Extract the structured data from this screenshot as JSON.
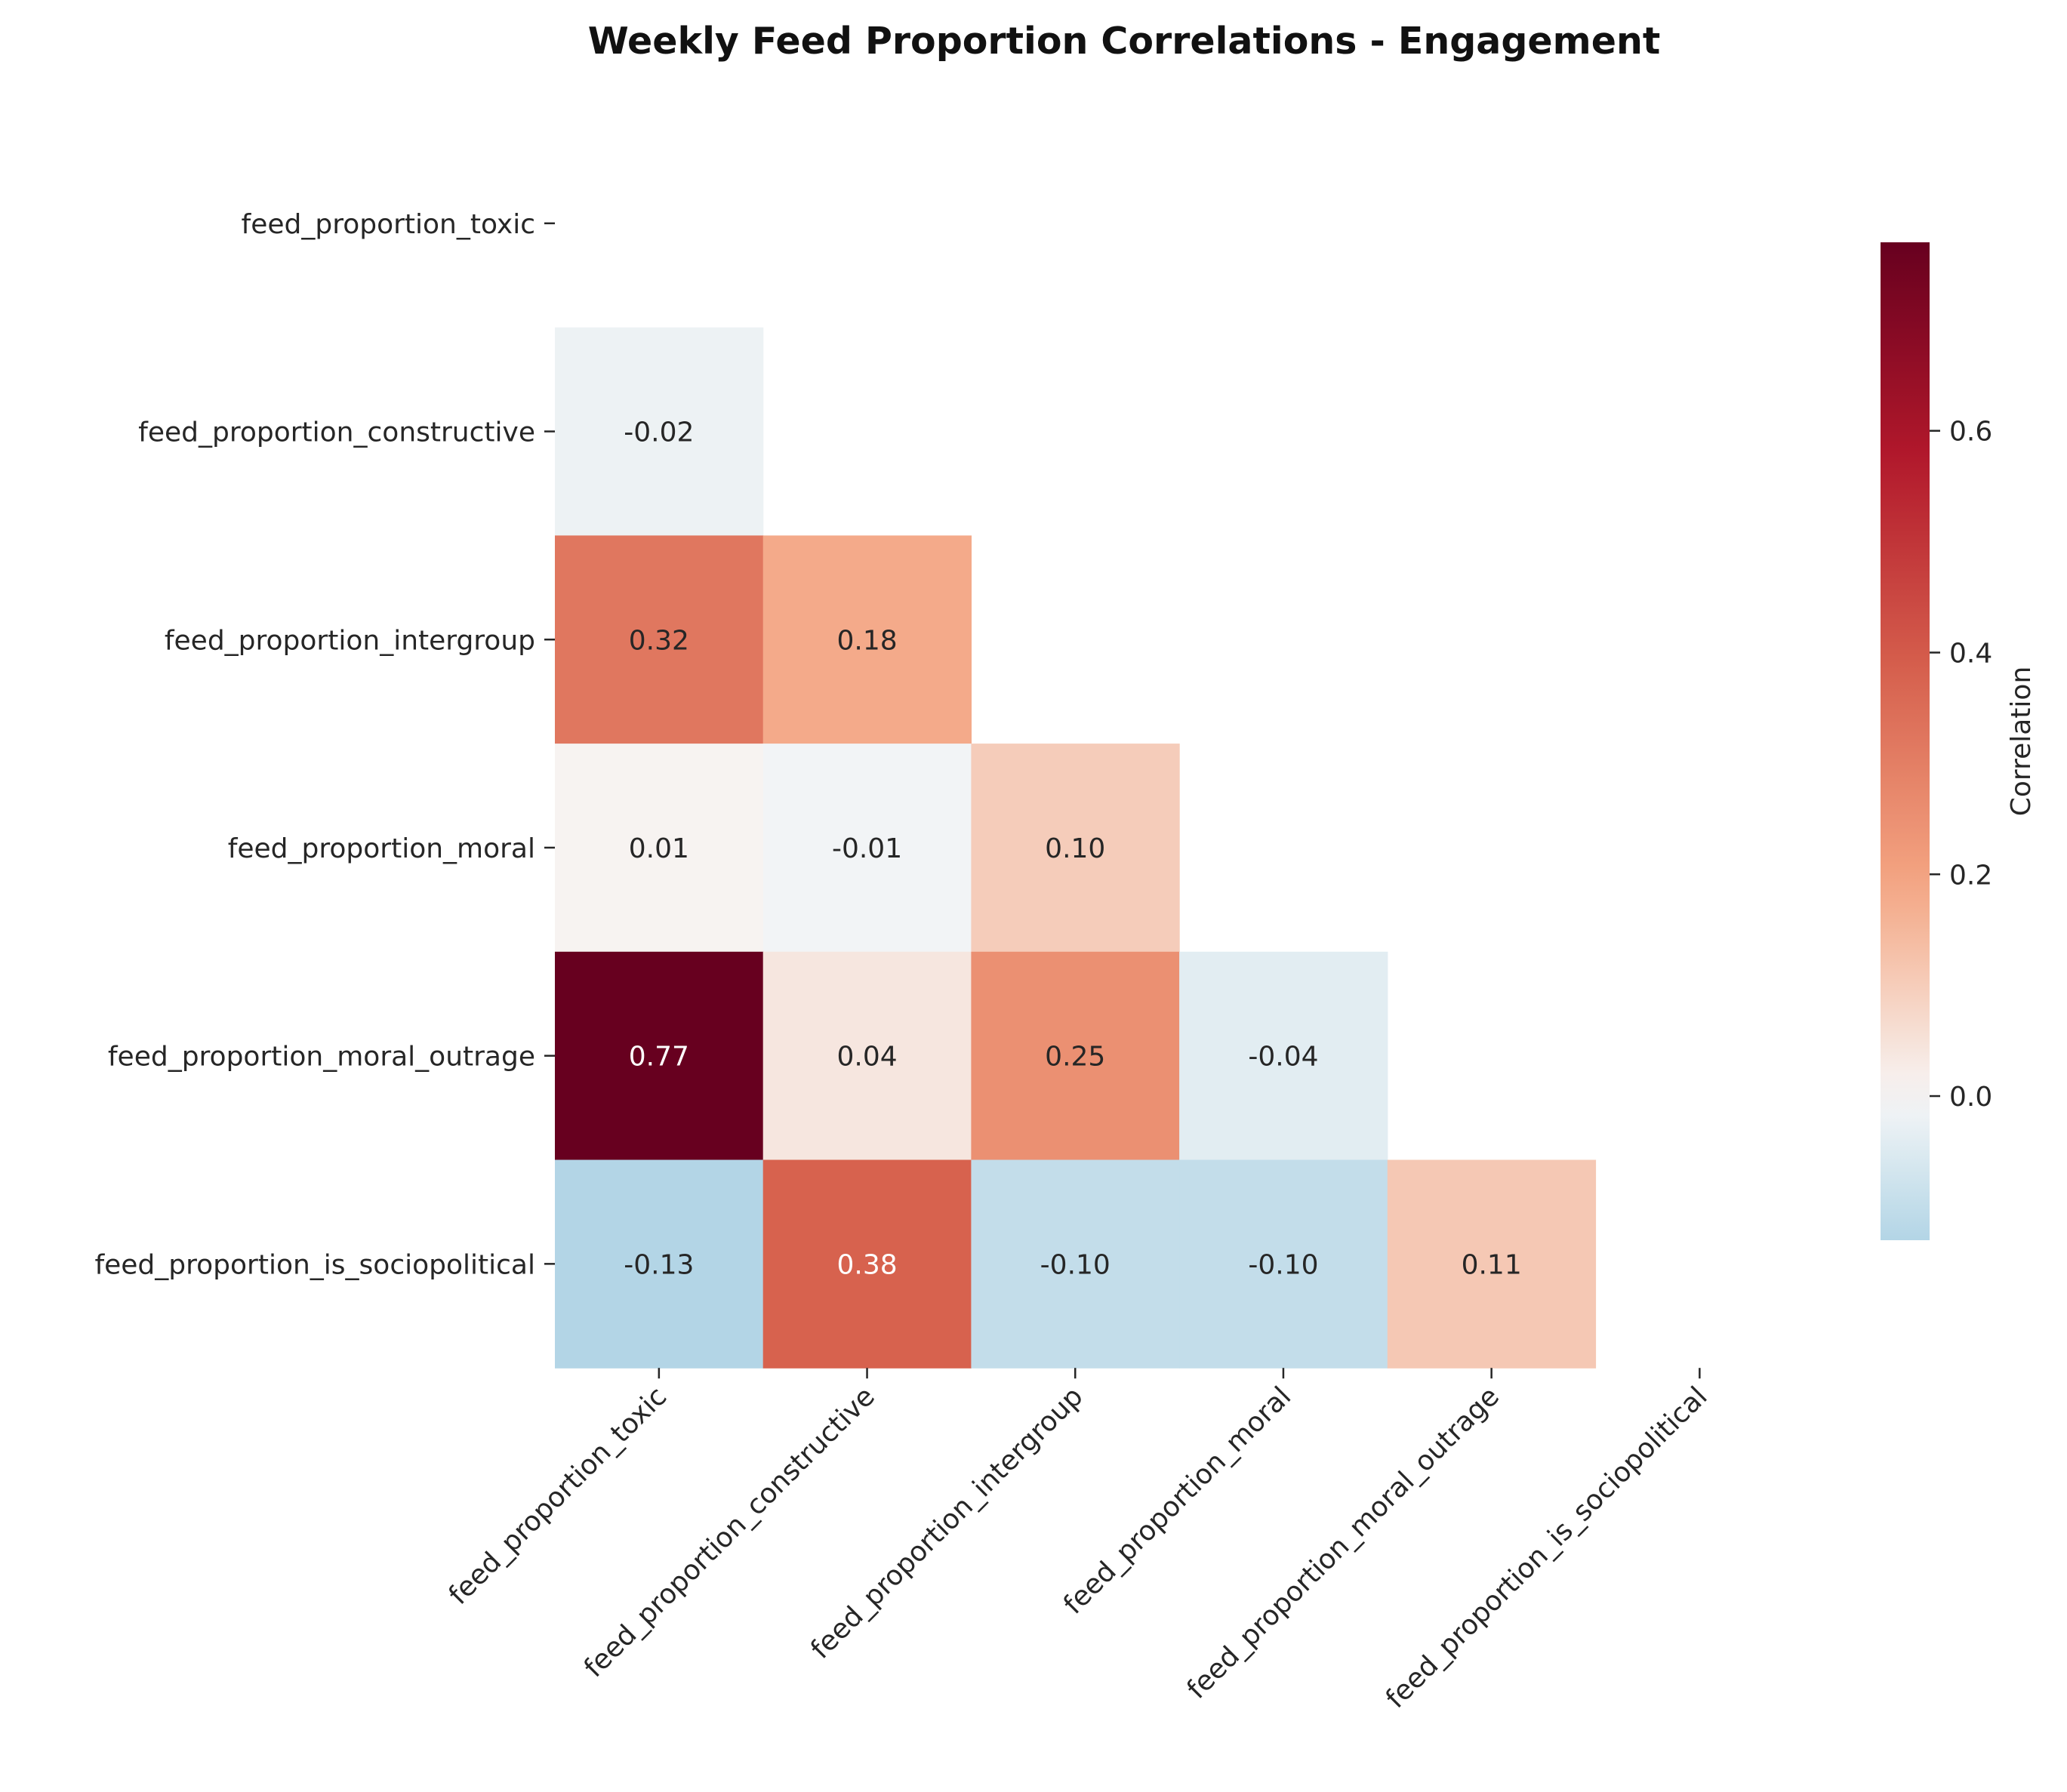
{
  "chart_data": {
    "type": "heatmap",
    "title": "Weekly Feed Proportion Correlations - Engagement",
    "variables": [
      "feed_proportion_toxic",
      "feed_proportion_constructive",
      "feed_proportion_intergroup",
      "feed_proportion_moral",
      "feed_proportion_moral_outrage",
      "feed_proportion_is_sociopolitical"
    ],
    "mask": "upper-triangle-including-diagonal",
    "values": [
      [
        null,
        null,
        null,
        null,
        null,
        null
      ],
      [
        -0.02,
        null,
        null,
        null,
        null,
        null
      ],
      [
        0.32,
        0.18,
        null,
        null,
        null,
        null
      ],
      [
        0.01,
        -0.01,
        0.1,
        null,
        null,
        null
      ],
      [
        0.77,
        0.04,
        0.25,
        -0.04,
        null,
        null
      ],
      [
        -0.13,
        0.38,
        -0.1,
        -0.1,
        0.11,
        null
      ]
    ],
    "value_format": "0.00",
    "colormap": "RdBu_r",
    "colormap_center": 0.0,
    "color_range": [
      -0.13,
      0.77
    ],
    "colorbar": {
      "label": "Correlation",
      "ticks": [
        0.0,
        0.2,
        0.4,
        0.6
      ],
      "tick_labels": [
        "0.0",
        "0.2",
        "0.4",
        "0.6"
      ],
      "placement": "right"
    }
  }
}
